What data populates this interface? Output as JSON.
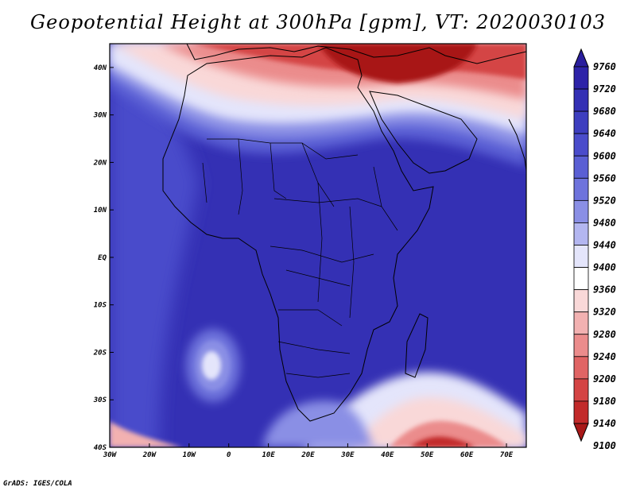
{
  "title": "Geopotential Height at 300hPa [gpm], VT: 2020030103",
  "footer": "GrADS: IGES/COLA",
  "map": {
    "lon_range": [
      -30,
      75
    ],
    "lat_range": [
      -40,
      45
    ],
    "lon_ticks": [
      {
        "value": -30,
        "label": "30W"
      },
      {
        "value": -20,
        "label": "20W"
      },
      {
        "value": -10,
        "label": "10W"
      },
      {
        "value": 0,
        "label": "0"
      },
      {
        "value": 10,
        "label": "10E"
      },
      {
        "value": 20,
        "label": "20E"
      },
      {
        "value": 30,
        "label": "30E"
      },
      {
        "value": 40,
        "label": "40E"
      },
      {
        "value": 50,
        "label": "50E"
      },
      {
        "value": 60,
        "label": "60E"
      },
      {
        "value": 70,
        "label": "70E"
      }
    ],
    "lat_ticks": [
      {
        "value": 40,
        "label": "40N"
      },
      {
        "value": 30,
        "label": "30N"
      },
      {
        "value": 20,
        "label": "20N"
      },
      {
        "value": 10,
        "label": "10N"
      },
      {
        "value": 0,
        "label": "EQ"
      },
      {
        "value": -10,
        "label": "10S"
      },
      {
        "value": -20,
        "label": "20S"
      },
      {
        "value": -30,
        "label": "30S"
      },
      {
        "value": -40,
        "label": "40S"
      }
    ]
  },
  "colorbar": {
    "levels": [
      "9760",
      "9720",
      "9680",
      "9640",
      "9600",
      "9560",
      "9520",
      "9480",
      "9440",
      "9400",
      "9360",
      "9320",
      "9280",
      "9240",
      "9200",
      "9180",
      "9140",
      "9100"
    ],
    "colors": [
      "#2a1e9e",
      "#2d23a8",
      "#3430b4",
      "#3d3ebf",
      "#4a4ccb",
      "#5a5fd4",
      "#6e73dc",
      "#8a8fe5",
      "#b3b6f0",
      "#e4e5fb",
      "#ffffff",
      "#f9d8d8",
      "#f2b1b1",
      "#eb8c8c",
      "#e06464",
      "#d44444",
      "#c22a2a",
      "#a81818"
    ]
  }
}
